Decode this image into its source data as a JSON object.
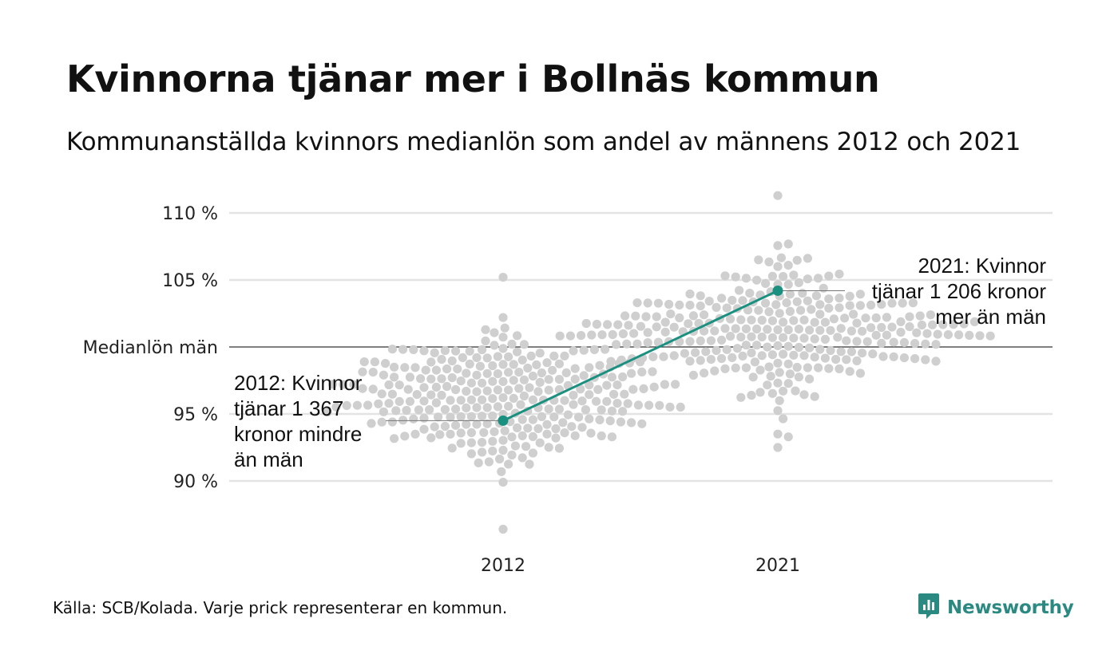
{
  "title": "Kvinnorna tjänar mer i Bollnäs kommun",
  "subtitle": "Kommunanställda kvinnors medianlön som andel av männens 2012 och 2021",
  "source": "Källa: SCB/Kolada. Varje prick representerar en kommun.",
  "brand": {
    "name": "Newsworthy",
    "icon": "newsworthy-logo-icon",
    "color": "#2a8a82"
  },
  "colors": {
    "dots": "#cfcfcf",
    "highlight": "#1a9080",
    "grid": "#e3e3e3",
    "reference": "#333333"
  },
  "chart_data": {
    "type": "scatter",
    "subtype": "beeswarm",
    "categories": [
      "2012",
      "2021"
    ],
    "y_ticks": [
      {
        "value": 90,
        "label": "90 %"
      },
      {
        "value": 95,
        "label": "95 %"
      },
      {
        "value": 100,
        "label": "Medianlön män"
      },
      {
        "value": 105,
        "label": "105 %"
      },
      {
        "value": 110,
        "label": "110 %"
      }
    ],
    "ylim": [
      85.5,
      111.5
    ],
    "reference_line": 100,
    "grid": true,
    "legend": "none",
    "highlight": {
      "name": "Bollnäs",
      "values": [
        {
          "x": "2012",
          "y": 94.5
        },
        {
          "x": "2021",
          "y": 104.2
        }
      ]
    },
    "annotations": [
      {
        "x": "2012",
        "y": 94.5,
        "lines": [
          "2012: Kvinnor",
          "tjänar 1 367",
          "kronor mindre",
          "än män"
        ]
      },
      {
        "x": "2021",
        "y": 104.2,
        "lines": [
          "2021: Kvinnor",
          "tjänar 1 206 kronor",
          "mer än män"
        ]
      }
    ],
    "distribution": [
      {
        "category": "2012",
        "count": 290,
        "min": 86.4,
        "max": 105.2,
        "center": 96.2,
        "spread": 2.4
      },
      {
        "category": "2021",
        "count": 290,
        "min": 92.5,
        "max": 111.3,
        "center": 101.3,
        "spread": 2.3
      }
    ]
  }
}
